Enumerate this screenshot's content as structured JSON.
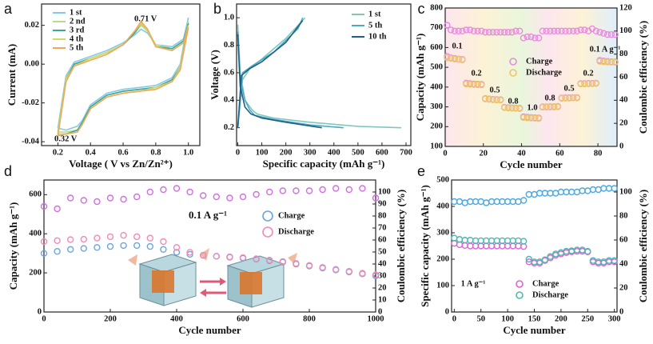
{
  "chart_data": [
    {
      "type": "line",
      "panel": "a",
      "xlabel": "Voltage ( V vs Zn/Zn²⁺)",
      "ylabel": "Current (mA)",
      "xlim": [
        0.1,
        1.07
      ],
      "ylim": [
        -0.042,
        0.031
      ],
      "xticks": [
        0.2,
        0.4,
        0.6,
        0.8,
        {
          "value": 1,
          "label": "1.0"
        }
      ],
      "yticks": [
        -0.04,
        -0.02,
        {
          "value": 0,
          "label": "0.00"
        },
        0.02
      ],
      "annotations": [
        "0.71 V",
        "0.32 V"
      ],
      "x": [
        0.2,
        0.25,
        0.3,
        0.4,
        0.5,
        0.6,
        0.67,
        0.71,
        0.75,
        0.8,
        0.9,
        0.97,
        1.0,
        0.95,
        0.9,
        0.8,
        0.7,
        0.6,
        0.5,
        0.4,
        0.35,
        0.32,
        0.25,
        0.2
      ],
      "series": [
        {
          "name": "1 st",
          "color": "#86c9e6",
          "values": [
            -0.033,
            -0.006,
            0.001,
            0.004,
            0.007,
            0.011,
            0.015,
            0.018,
            0.016,
            0.01,
            0.009,
            0.013,
            0.024,
            0.0,
            -0.007,
            -0.011,
            -0.012,
            -0.013,
            -0.015,
            -0.021,
            -0.029,
            -0.032,
            -0.034,
            -0.033
          ]
        },
        {
          "name": "2 nd",
          "color": "#b8dc8e",
          "values": [
            -0.035,
            -0.007,
            0.0,
            0.003,
            0.006,
            0.01,
            0.016,
            0.02,
            0.017,
            0.01,
            0.008,
            0.012,
            0.022,
            -0.001,
            -0.008,
            -0.012,
            -0.013,
            -0.014,
            -0.016,
            -0.022,
            -0.03,
            -0.034,
            -0.035,
            -0.035
          ]
        },
        {
          "name": "3 rd",
          "color": "#3aa79f",
          "values": [
            -0.036,
            -0.008,
            0.0,
            0.003,
            0.006,
            0.01,
            0.016,
            0.021,
            0.017,
            0.009,
            0.008,
            0.012,
            0.021,
            -0.002,
            -0.008,
            -0.012,
            -0.013,
            -0.014,
            -0.016,
            -0.022,
            -0.03,
            -0.034,
            -0.036,
            -0.036
          ]
        },
        {
          "name": "4 th",
          "color": "#cfdc63",
          "values": [
            -0.036,
            -0.008,
            -0.001,
            0.003,
            0.006,
            0.01,
            0.017,
            0.021,
            0.017,
            0.009,
            0.007,
            0.011,
            0.02,
            -0.002,
            -0.009,
            -0.012,
            -0.014,
            -0.015,
            -0.017,
            -0.023,
            -0.031,
            -0.035,
            -0.036,
            -0.036
          ]
        },
        {
          "name": "5 th",
          "color": "#f1a65a",
          "values": [
            -0.037,
            -0.009,
            -0.001,
            0.002,
            0.005,
            0.01,
            0.017,
            0.022,
            0.018,
            0.009,
            0.007,
            0.011,
            0.019,
            -0.003,
            -0.009,
            -0.013,
            -0.014,
            -0.015,
            -0.017,
            -0.023,
            -0.031,
            -0.035,
            -0.036,
            -0.037
          ]
        }
      ]
    },
    {
      "type": "line",
      "panel": "b",
      "xlabel": "Specific capacity (mAh g⁻¹)",
      "ylabel": "Voltage (V)",
      "xlim": [
        -5,
        720
      ],
      "ylim": [
        0.07,
        1.1
      ],
      "xticks": [
        0,
        100,
        200,
        300,
        400,
        500,
        600,
        700
      ],
      "yticks": [
        0.2,
        0.4,
        0.6,
        0.8,
        {
          "value": 1,
          "label": "1.0"
        }
      ],
      "series": [
        {
          "name": "1 st",
          "color": "#7ec8c0",
          "x": [
            0,
            10,
            30,
            60,
            80,
            150,
            300,
            500,
            680,
            null,
            0,
            20,
            50,
            100,
            200,
            280
          ],
          "values": [
            0.95,
            0.6,
            0.4,
            0.33,
            0.3,
            0.27,
            0.24,
            0.21,
            0.2,
            null,
            0.2,
            0.55,
            0.63,
            0.7,
            0.85,
            1.0
          ]
        },
        {
          "name": "5 th",
          "color": "#4fa9bf",
          "x": [
            0,
            10,
            30,
            50,
            70,
            150,
            300,
            440,
            null,
            0,
            20,
            60,
            150,
            250,
            270
          ],
          "values": [
            0.9,
            0.55,
            0.4,
            0.33,
            0.29,
            0.26,
            0.22,
            0.2,
            null,
            0.2,
            0.6,
            0.65,
            0.75,
            0.92,
            1.0
          ]
        },
        {
          "name": "10 th",
          "color": "#1e5f8a",
          "x": [
            0,
            10,
            30,
            55,
            100,
            200,
            350,
            null,
            0,
            15,
            50,
            100,
            200,
            270
          ],
          "values": [
            0.88,
            0.5,
            0.35,
            0.3,
            0.27,
            0.24,
            0.2,
            null,
            0.2,
            0.58,
            0.63,
            0.68,
            0.82,
            0.98
          ]
        }
      ]
    },
    {
      "type": "scatter",
      "panel": "c",
      "xlabel": "Cycle number",
      "ylabel": "Capacity (mAh g⁻¹)",
      "y2label": "Coulombic efficiency (%)",
      "xlim": [
        0,
        90
      ],
      "ylim": [
        100,
        800
      ],
      "y2lim": [
        0,
        120
      ],
      "xticks": [
        0,
        20,
        40,
        60,
        80
      ],
      "yticks": [
        100,
        200,
        300,
        400,
        500,
        600,
        700,
        800
      ],
      "y2ticks": [
        0,
        20,
        40,
        60,
        80,
        100,
        120
      ],
      "annotations": [
        "0.1",
        "0.2",
        "0.5",
        "0.8",
        "1.0",
        "0.8",
        "0.5",
        "0.2",
        "0.1 A g⁻¹"
      ],
      "x": [
        1,
        3,
        5,
        7,
        9,
        11,
        13,
        15,
        17,
        19,
        21,
        23,
        25,
        27,
        29,
        31,
        33,
        35,
        37,
        39,
        41,
        43,
        45,
        47,
        49,
        51,
        53,
        55,
        57,
        59,
        61,
        63,
        65,
        67,
        69,
        71,
        73,
        75,
        77,
        79,
        81,
        83,
        85,
        87,
        89
      ],
      "series": [
        {
          "name": "Charge",
          "color": "#e28ede",
          "values": [
            555,
            548,
            545,
            542,
            540,
            420,
            418,
            416,
            415,
            414,
            342,
            340,
            338,
            337,
            336,
            298,
            296,
            295,
            294,
            293,
            250,
            248,
            246,
            245,
            244,
            300,
            300,
            301,
            301,
            302,
            345,
            346,
            346,
            347,
            347,
            418,
            418,
            419,
            419,
            420,
            535,
            532,
            530,
            528,
            527
          ]
        },
        {
          "name": "Discharge",
          "color": "#f0c46a",
          "values": [
            548,
            545,
            542,
            540,
            538,
            416,
            414,
            413,
            412,
            411,
            340,
            338,
            336,
            335,
            334,
            296,
            294,
            293,
            292,
            291,
            246,
            244,
            243,
            242,
            241,
            298,
            298,
            299,
            299,
            300,
            343,
            344,
            344,
            345,
            345,
            416,
            416,
            417,
            417,
            418,
            530,
            528,
            527,
            526,
            525
          ]
        }
      ],
      "efficiency": {
        "color": "#e88be0",
        "axis": "y2",
        "values": [
          105,
          101,
          100,
          100,
          100,
          101,
          101,
          100,
          100,
          100,
          99,
          99,
          99,
          99,
          99,
          99,
          99,
          99,
          100,
          100,
          94,
          95,
          95,
          94,
          94,
          100,
          100,
          100,
          100,
          100,
          100,
          100,
          100,
          100,
          100,
          101,
          101,
          100,
          102,
          100,
          99,
          98,
          97,
          97,
          97
        ]
      }
    },
    {
      "type": "scatter",
      "panel": "d",
      "xlabel": "Cycle number",
      "ylabel": "Capacity (mAh g⁻¹)",
      "y2label": "Coulombic efficiency (%)",
      "xlim": [
        0,
        1000
      ],
      "ylim": [
        0,
        675
      ],
      "y2lim": [
        0,
        110
      ],
      "xticks": [
        0,
        200,
        400,
        600,
        800,
        1000
      ],
      "yticks": [
        0,
        200,
        400,
        600
      ],
      "y2ticks": [
        0,
        10,
        20,
        30,
        40,
        50,
        60,
        70,
        80,
        90,
        100
      ],
      "annotations": [
        "0.1 A g⁻¹"
      ],
      "x": [
        0,
        40,
        80,
        120,
        160,
        200,
        240,
        280,
        320,
        360,
        400,
        440,
        480,
        520,
        560,
        600,
        640,
        680,
        720,
        760,
        800,
        840,
        880,
        920,
        960,
        1000
      ],
      "series": [
        {
          "name": "Charge",
          "color": "#6aa5e0",
          "values": [
            300,
            310,
            320,
            325,
            330,
            335,
            340,
            340,
            335,
            320,
            305,
            295,
            290,
            285,
            280,
            275,
            270,
            262,
            255,
            245,
            235,
            225,
            215,
            205,
            195,
            185
          ]
        },
        {
          "name": "Discharge",
          "color": "#f08ab8",
          "values": [
            360,
            365,
            370,
            372,
            378,
            385,
            392,
            385,
            378,
            360,
            330,
            305,
            290,
            285,
            282,
            278,
            272,
            265,
            258,
            248,
            238,
            228,
            218,
            208,
            198,
            190
          ]
        }
      ],
      "efficiency": {
        "color": "#d070e0",
        "axis": "y2",
        "values": [
          88,
          86,
          95,
          93,
          92,
          95,
          94,
          96,
          100,
          102,
          103,
          100,
          97,
          96,
          95,
          96,
          98,
          100,
          101,
          101,
          101,
          102,
          103,
          102,
          103,
          95
        ]
      }
    },
    {
      "type": "scatter",
      "panel": "e",
      "xlabel": "Cycle number",
      "ylabel": "Specific capacity (mAh g⁻¹)",
      "y2label": "Coulombic efficiency (%)",
      "xlim": [
        -5,
        305
      ],
      "ylim": [
        0,
        500
      ],
      "y2lim": [
        0,
        110
      ],
      "xticks": [
        0,
        50,
        100,
        150,
        200,
        250,
        300
      ],
      "yticks": [
        0,
        100,
        200,
        300,
        400,
        500
      ],
      "y2ticks": [
        0,
        20,
        40,
        60,
        80,
        100
      ],
      "annotations": [
        "1 A g⁻¹"
      ],
      "x": [
        0,
        10,
        20,
        30,
        40,
        50,
        60,
        70,
        80,
        90,
        100,
        110,
        120,
        130,
        140,
        150,
        160,
        170,
        180,
        190,
        200,
        210,
        220,
        230,
        240,
        250,
        260,
        270,
        280,
        290,
        300
      ],
      "series": [
        {
          "name": "Charge",
          "color": "#e060d8",
          "values": [
            260,
            255,
            252,
            250,
            250,
            250,
            250,
            250,
            250,
            250,
            250,
            250,
            250,
            248,
            190,
            185,
            185,
            195,
            205,
            215,
            220,
            225,
            228,
            230,
            230,
            228,
            190,
            185,
            185,
            190,
            190
          ]
        },
        {
          "name": "Discharge",
          "color": "#50b8b0",
          "values": [
            280,
            275,
            272,
            272,
            270,
            270,
            270,
            270,
            270,
            270,
            270,
            270,
            270,
            268,
            200,
            190,
            190,
            198,
            210,
            220,
            225,
            230,
            232,
            235,
            235,
            230,
            195,
            190,
            190,
            195,
            195
          ]
        }
      ],
      "efficiency": {
        "color": "#4aa8e0",
        "axis": "y2",
        "values": [
          92,
          92,
          91,
          92,
          92,
          92,
          91,
          92,
          92,
          92,
          92,
          92,
          92,
          93,
          98,
          98,
          99,
          99,
          99,
          99,
          100,
          100,
          100,
          100,
          101,
          101,
          102,
          102,
          103,
          103,
          103
        ]
      }
    }
  ]
}
